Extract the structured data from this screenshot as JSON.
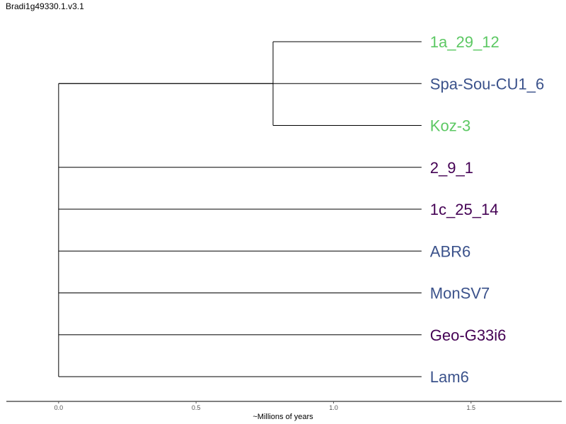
{
  "title": "Bradi1g49330.1.v3.1",
  "axis": {
    "label": "~Millions of years",
    "ticks": [
      {
        "value": 0.0,
        "label": "0.0"
      },
      {
        "value": 0.5,
        "label": "0.5"
      },
      {
        "value": 1.0,
        "label": "1.0"
      },
      {
        "value": 1.5,
        "label": "1.5"
      }
    ],
    "range": [
      -0.19,
      1.83
    ]
  },
  "tree": {
    "root_age": 0.0,
    "clade_node_age": 0.78,
    "tip_age": 1.32,
    "tips": [
      {
        "name": "1a_29_12",
        "color": "#5cc863",
        "clade": "A"
      },
      {
        "name": "Spa-Sou-CU1_6",
        "color": "#3b528b",
        "clade": "root"
      },
      {
        "name": "Koz-3",
        "color": "#5cc863",
        "clade": "A"
      },
      {
        "name": "2_9_1",
        "color": "#440154",
        "clade": "root"
      },
      {
        "name": "1c_25_14",
        "color": "#440154",
        "clade": "root"
      },
      {
        "name": "ABR6",
        "color": "#3b528b",
        "clade": "root"
      },
      {
        "name": "MonSV7",
        "color": "#3b528b",
        "clade": "root"
      },
      {
        "name": "Geo-G33i6",
        "color": "#440154",
        "clade": "root"
      },
      {
        "name": "Lam6",
        "color": "#3b528b",
        "clade": "root"
      }
    ]
  }
}
